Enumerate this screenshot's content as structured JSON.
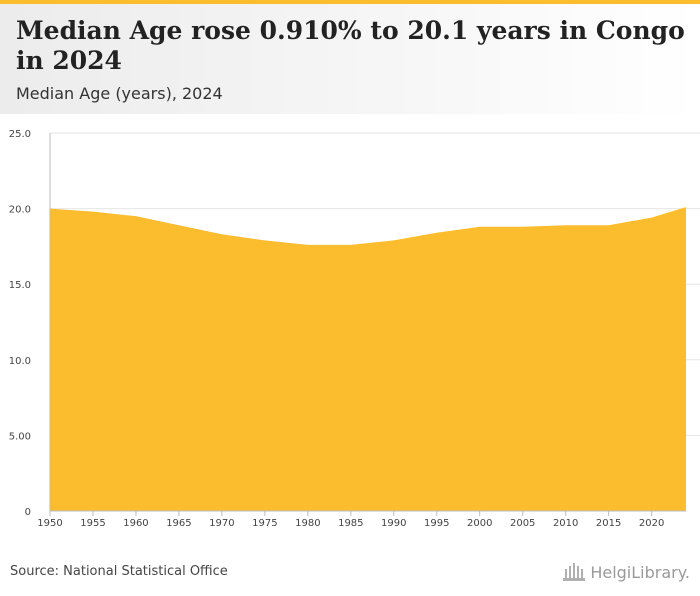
{
  "header": {
    "title": "Median Age rose 0.910% to 20.1 years in Congo in 2024",
    "subtitle": "Median Age (years), 2024"
  },
  "footer": {
    "source": "Source: National Statistical Office",
    "logo_text": "HelgiLibrary."
  },
  "colors": {
    "area_fill": "#fbbc2e",
    "grid": "#e6e6e6",
    "axis": "#bbbbbb"
  },
  "chart_data": {
    "type": "area",
    "x": [
      1950,
      1955,
      1960,
      1965,
      1970,
      1975,
      1980,
      1985,
      1990,
      1995,
      2000,
      2005,
      2010,
      2015,
      2020,
      2024
    ],
    "series": [
      {
        "values": [
          20.0,
          19.8,
          19.5,
          18.9,
          18.3,
          17.9,
          17.6,
          17.6,
          17.9,
          18.4,
          18.8,
          18.8,
          18.9,
          18.9,
          19.4,
          20.1
        ]
      }
    ],
    "x_ticks": [
      "1950",
      "1955",
      "1960",
      "1965",
      "1970",
      "1975",
      "1980",
      "1985",
      "1990",
      "1995",
      "2000",
      "2005",
      "2010",
      "2015",
      "2020"
    ],
    "y_ticks": [
      "0",
      "5.00",
      "10.0",
      "15.0",
      "20.0",
      "25.0"
    ],
    "ylim": [
      0,
      25
    ],
    "grid": true,
    "legend": "none"
  }
}
